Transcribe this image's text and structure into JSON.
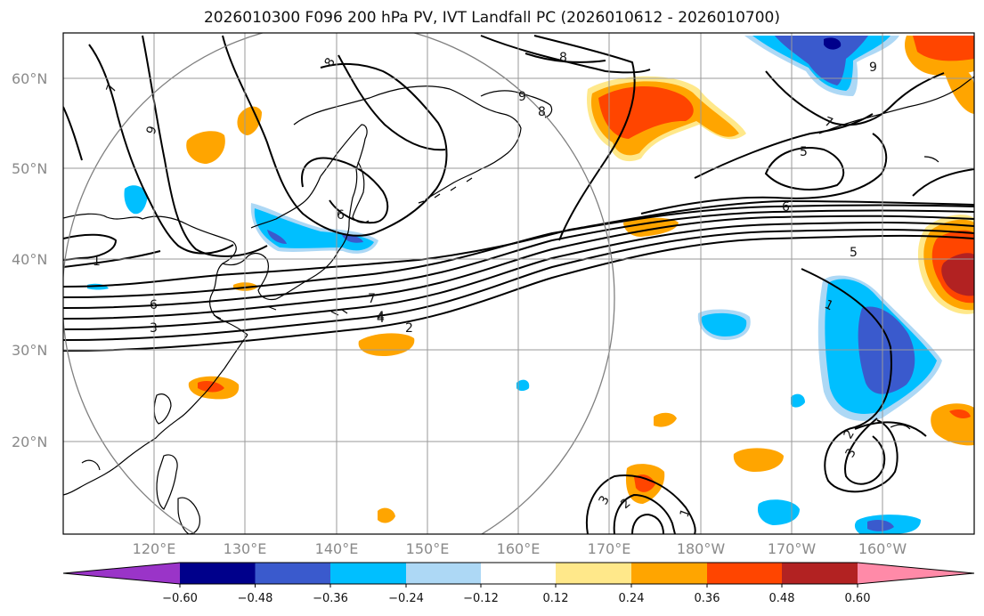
{
  "title": "2026010300 F096 200 hPa PV, IVT Landfall PC (2026010612 - 2026010700)",
  "map": {
    "lat_labels": [
      "60°N",
      "50°N",
      "40°N",
      "30°N",
      "20°N"
    ],
    "lon_labels": [
      "120°E",
      "130°E",
      "140°E",
      "150°E",
      "160°E",
      "170°E",
      "180°W",
      "170°W",
      "160°W"
    ],
    "contour_labels": [
      "7",
      "9",
      "8",
      "8",
      "9",
      "8",
      "9",
      "7",
      "6",
      "5",
      "6",
      "5",
      "1",
      "4",
      "6",
      "3",
      "7",
      "4",
      "2",
      "1",
      "2",
      "3",
      "3",
      "2",
      "1"
    ]
  },
  "colorbar": {
    "ticks": [
      "−0.60",
      "−0.48",
      "−0.36",
      "−0.24",
      "−0.12",
      "0.12",
      "0.24",
      "0.36",
      "0.48",
      "0.60"
    ],
    "colors": [
      "#9a34c8",
      "#00008b",
      "#3a5acd",
      "#00bfff",
      "#add8f5",
      "#ffffff",
      "#ffe88a",
      "#ffa500",
      "#ff4500",
      "#b22222",
      "#ff8aa8"
    ]
  }
}
